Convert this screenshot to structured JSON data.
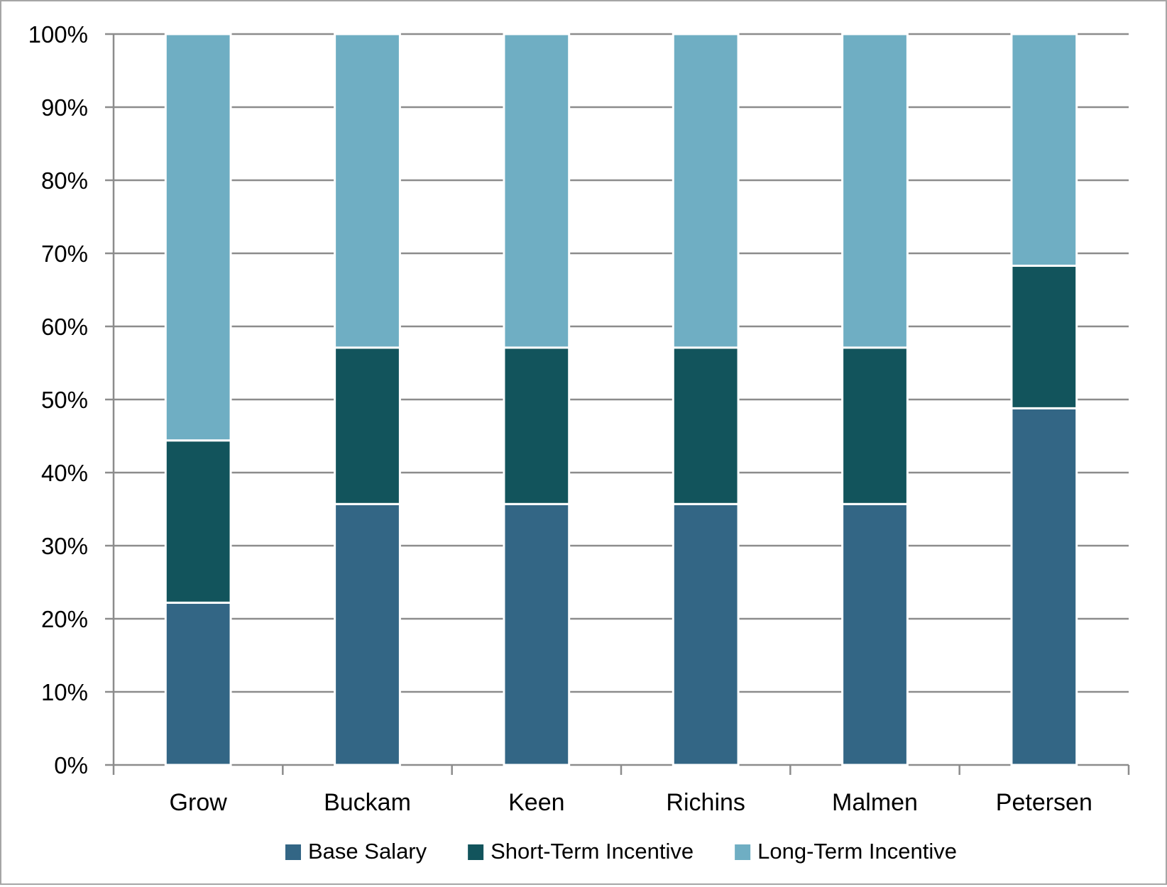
{
  "chart_data": {
    "type": "bar",
    "stacked": true,
    "percent": true,
    "categories": [
      "Grow",
      "Buckam",
      "Keen",
      "Richins",
      "Malmen",
      "Petersen"
    ],
    "series": [
      {
        "name": "Base Salary",
        "color": "#336685",
        "values": [
          22.2,
          35.7,
          35.7,
          35.7,
          35.7,
          48.8
        ]
      },
      {
        "name": "Short-Term Incentive",
        "color": "#12545c",
        "values": [
          22.2,
          21.4,
          21.4,
          21.4,
          21.4,
          19.5
        ]
      },
      {
        "name": "Long-Term Incentive",
        "color": "#6faec3",
        "values": [
          55.6,
          42.9,
          42.9,
          42.9,
          42.9,
          31.7
        ]
      }
    ],
    "yticks": [
      "0%",
      "10%",
      "20%",
      "30%",
      "40%",
      "50%",
      "60%",
      "70%",
      "80%",
      "90%",
      "100%"
    ],
    "ylim": [
      0,
      100
    ],
    "grid": true,
    "legend_position": "bottom"
  }
}
